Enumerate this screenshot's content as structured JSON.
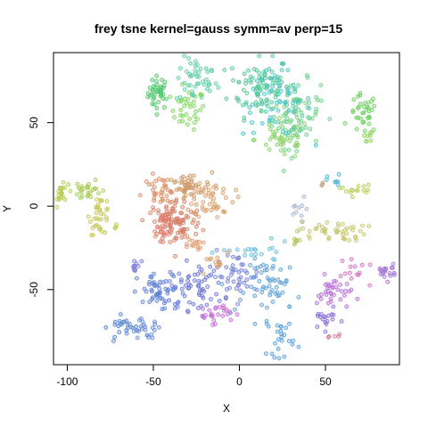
{
  "chart_data": {
    "type": "scatter",
    "title": "frey tsne kernel=gauss symm=av perp=15",
    "xlabel": "X",
    "ylabel": "Y",
    "xlim": [
      -108,
      93
    ],
    "ylim": [
      -95,
      92
    ],
    "xticks": [
      -100,
      -50,
      0,
      50
    ],
    "yticks": [
      -50,
      0,
      50
    ],
    "grid": false,
    "legend": "none",
    "clusters": [
      {
        "color": "#4fc66a",
        "cx": -47,
        "cy": 68,
        "sx": 3,
        "sy": 5,
        "n": 40
      },
      {
        "color": "#7fd65c",
        "cx": -30,
        "cy": 58,
        "sx": 5,
        "sy": 6,
        "n": 35
      },
      {
        "color": "#5fcfa8",
        "cx": -25,
        "cy": 75,
        "sx": 6,
        "sy": 7,
        "n": 45
      },
      {
        "color": "#56c89a",
        "cx": 12,
        "cy": 72,
        "sx": 9,
        "sy": 9,
        "n": 90
      },
      {
        "color": "#6fd08a",
        "cx": 33,
        "cy": 55,
        "sx": 7,
        "sy": 10,
        "n": 80
      },
      {
        "color": "#4cc3c4",
        "cx": 22,
        "cy": 62,
        "sx": 10,
        "sy": 10,
        "n": 60
      },
      {
        "color": "#8bd46a",
        "cx": 25,
        "cy": 40,
        "sx": 8,
        "sy": 6,
        "n": 40
      },
      {
        "color": "#6ed05e",
        "cx": 72,
        "cy": 55,
        "sx": 4,
        "sy": 6,
        "n": 35
      },
      {
        "color": "#90d45a",
        "cx": 74,
        "cy": 40,
        "sx": 2,
        "sy": 3,
        "n": 8
      },
      {
        "color": "#b7cd55",
        "cx": -103,
        "cy": 7,
        "sx": 2,
        "sy": 3,
        "n": 20
      },
      {
        "color": "#a8cc55",
        "cx": -88,
        "cy": 10,
        "sx": 4,
        "sy": 3,
        "n": 25
      },
      {
        "color": "#c6c859",
        "cx": -81,
        "cy": -5,
        "sx": 3,
        "sy": 6,
        "n": 35
      },
      {
        "color": "#b9d05a",
        "cx": -72,
        "cy": -12,
        "sx": 1,
        "sy": 1,
        "n": 4
      },
      {
        "color": "#d98f6b",
        "cx": -46,
        "cy": 6,
        "sx": 5,
        "sy": 6,
        "n": 45
      },
      {
        "color": "#cf9a6a",
        "cx": -30,
        "cy": 10,
        "sx": 7,
        "sy": 5,
        "n": 60
      },
      {
        "color": "#d57f66",
        "cx": -36,
        "cy": -10,
        "sx": 7,
        "sy": 7,
        "n": 70
      },
      {
        "color": "#d9a26c",
        "cx": -15,
        "cy": 5,
        "sx": 6,
        "sy": 6,
        "n": 40
      },
      {
        "color": "#e07a6a",
        "cx": -45,
        "cy": -12,
        "sx": 4,
        "sy": 5,
        "n": 30
      },
      {
        "color": "#e39a6f",
        "cx": -28,
        "cy": -23,
        "sx": 3,
        "sy": 3,
        "n": 15
      },
      {
        "color": "#c7c86e",
        "cx": 53,
        "cy": -15,
        "sx": 10,
        "sy": 3,
        "n": 45
      },
      {
        "color": "#b8cf5c",
        "cx": 68,
        "cy": 10,
        "sx": 5,
        "sy": 2,
        "n": 15
      },
      {
        "color": "#54b6d6",
        "cx": 55,
        "cy": 15,
        "sx": 2,
        "sy": 2,
        "n": 8
      },
      {
        "color": "#c6a47a",
        "cx": 48,
        "cy": 13,
        "sx": 1,
        "sy": 1,
        "n": 3
      },
      {
        "color": "#a7b6cf",
        "cx": 35,
        "cy": -5,
        "sx": 3,
        "sy": 5,
        "n": 10
      },
      {
        "color": "#b4c25a",
        "cx": 33,
        "cy": -20,
        "sx": 2,
        "sy": 2,
        "n": 6
      },
      {
        "color": "#5f82d6",
        "cx": -45,
        "cy": -52,
        "sx": 7,
        "sy": 6,
        "n": 55
      },
      {
        "color": "#6f7ad8",
        "cx": -25,
        "cy": -48,
        "sx": 8,
        "sy": 7,
        "n": 60
      },
      {
        "color": "#7a86db",
        "cx": -2,
        "cy": -42,
        "sx": 7,
        "sy": 7,
        "n": 45
      },
      {
        "color": "#5fa4d6",
        "cx": 20,
        "cy": -48,
        "sx": 8,
        "sy": 8,
        "n": 55
      },
      {
        "color": "#5aa0dc",
        "cx": 24,
        "cy": -78,
        "sx": 4,
        "sy": 6,
        "n": 25
      },
      {
        "color": "#6a8ed6",
        "cx": -55,
        "cy": -74,
        "sx": 5,
        "sy": 3,
        "n": 25
      },
      {
        "color": "#5b86d4",
        "cx": -68,
        "cy": -72,
        "sx": 4,
        "sy": 3,
        "n": 20
      },
      {
        "color": "#7d7fdc",
        "cx": -60,
        "cy": -37,
        "sx": 2,
        "sy": 3,
        "n": 10
      },
      {
        "color": "#c66ed6",
        "cx": -15,
        "cy": -64,
        "sx": 5,
        "sy": 3,
        "n": 25
      },
      {
        "color": "#b870d8",
        "cx": 55,
        "cy": -52,
        "sx": 5,
        "sy": 5,
        "n": 35
      },
      {
        "color": "#8a6fd8",
        "cx": 50,
        "cy": -68,
        "sx": 4,
        "sy": 3,
        "n": 18
      },
      {
        "color": "#a478d8",
        "cx": 85,
        "cy": -38,
        "sx": 3,
        "sy": 3,
        "n": 20
      },
      {
        "color": "#d072c4",
        "cx": 68,
        "cy": -40,
        "sx": 7,
        "sy": 3,
        "n": 14
      },
      {
        "color": "#d57fa8",
        "cx": 57,
        "cy": -78,
        "sx": 2,
        "sy": 1,
        "n": 5
      },
      {
        "color": "#6bbfd9",
        "cx": 10,
        "cy": -28,
        "sx": 10,
        "sy": 3,
        "n": 20
      },
      {
        "color": "#d9a26c",
        "cx": -15,
        "cy": -35,
        "sx": 5,
        "sy": 4,
        "n": 12
      }
    ]
  }
}
